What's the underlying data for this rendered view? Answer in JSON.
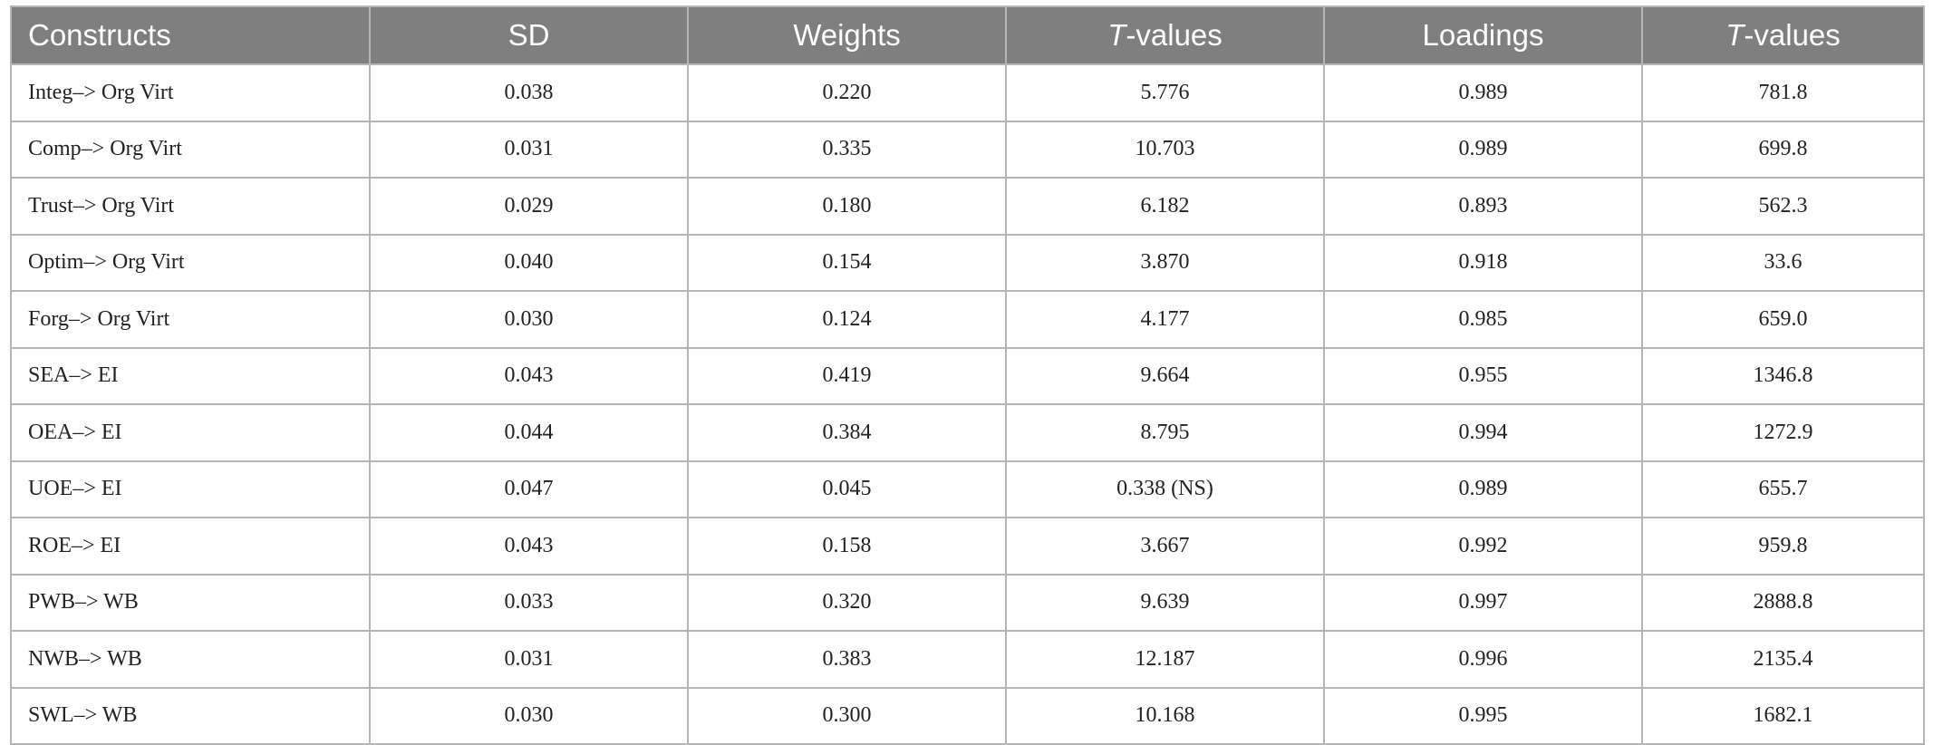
{
  "table": {
    "header": [
      "Constructs",
      "SD",
      "Weights",
      {
        "italic": "T",
        "rest": "-values"
      },
      "Loadings",
      {
        "italic": "T",
        "rest": "-values"
      }
    ],
    "rows": [
      [
        "Integ–> Org Virt",
        "0.038",
        "0.220",
        "5.776",
        "0.989",
        "781.8"
      ],
      [
        "Comp–> Org Virt",
        "0.031",
        "0.335",
        "10.703",
        "0.989",
        "699.8"
      ],
      [
        "Trust–> Org Virt",
        "0.029",
        "0.180",
        "6.182",
        "0.893",
        "562.3"
      ],
      [
        "Optim–> Org Virt",
        "0.040",
        "0.154",
        "3.870",
        "0.918",
        "33.6"
      ],
      [
        "Forg–> Org Virt",
        "0.030",
        "0.124",
        "4.177",
        "0.985",
        "659.0"
      ],
      [
        "SEA–> EI",
        "0.043",
        "0.419",
        "9.664",
        "0.955",
        "1346.8"
      ],
      [
        "OEA–> EI",
        "0.044",
        "0.384",
        "8.795",
        "0.994",
        "1272.9"
      ],
      [
        "UOE–> EI",
        "0.047",
        "0.045",
        "0.338 (NS)",
        "0.989",
        "655.7"
      ],
      [
        "ROE–> EI",
        "0.043",
        "0.158",
        "3.667",
        "0.992",
        "959.8"
      ],
      [
        "PWB–> WB",
        "0.033",
        "0.320",
        "9.639",
        "0.997",
        "2888.8"
      ],
      [
        "NWB–> WB",
        "0.031",
        "0.383",
        "12.187",
        "0.996",
        "2135.4"
      ],
      [
        "SWL–> WB",
        "0.030",
        "0.300",
        "10.168",
        "0.995",
        "1682.1"
      ]
    ]
  }
}
